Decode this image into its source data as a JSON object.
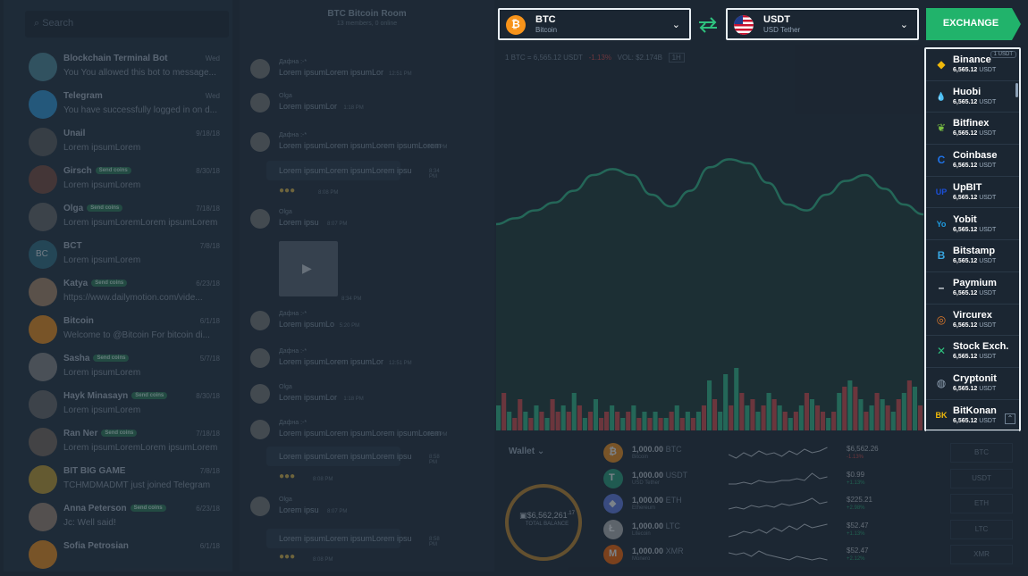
{
  "search": {
    "placeholder": "Search"
  },
  "chats": [
    {
      "name": "Blockchain Terminal Bot",
      "time": "Wed",
      "msg": "You You allowed this bot to message...",
      "badge": "",
      "color": "#4f8f9e"
    },
    {
      "name": "Telegram",
      "time": "Wed",
      "msg": "You have successfully logged in on d...",
      "badge": "",
      "color": "#2f9de0"
    },
    {
      "name": "Unail",
      "time": "9/18/18",
      "msg": "Lorem ipsumLorem",
      "badge": "",
      "color": "#5e5e5e"
    },
    {
      "name": "Girsch",
      "time": "8/30/18",
      "msg": "Lorem ipsumLorem",
      "badge": "Send coins",
      "color": "#7b4b3e"
    },
    {
      "name": "Olga",
      "time": "7/18/18",
      "msg": "Lorem ipsumLoremLorem ipsumLorem",
      "badge": "Send coins",
      "color": "#6a6a6a"
    },
    {
      "name": "BCT",
      "time": "7/8/18",
      "msg": "Lorem ipsumLorem",
      "badge": "",
      "color": "#2f7287",
      "initials": "BC"
    },
    {
      "name": "Katya",
      "time": "6/23/18",
      "msg": "https://www.dailymotion.com/vide...",
      "badge": "Send coins",
      "color": "#b08b6a"
    },
    {
      "name": "Bitcoin",
      "time": "6/1/18",
      "msg": "Welcome to @Bitcoin For bitcoin di...",
      "badge": "",
      "color": "#f7931a"
    },
    {
      "name": "Sasha",
      "time": "5/7/18",
      "msg": "Lorem ipsumLorem",
      "badge": "Send coins",
      "color": "#8a8a8a"
    },
    {
      "name": "Hayk Minasayn",
      "time": "8/30/18",
      "msg": "Lorem ipsumLorem",
      "badge": "Send coins",
      "color": "#6b6b6b"
    },
    {
      "name": "Ran Ner",
      "time": "7/18/18",
      "msg": "Lorem ipsumLoremLorem ipsumLorem",
      "badge": "Send coins",
      "color": "#7a6a5e"
    },
    {
      "name": "BIT BIG GAME",
      "time": "7/8/18",
      "msg": "TCHMDMADMT just joined Telegram",
      "badge": "",
      "color": "#c9a230"
    },
    {
      "name": "Anna Peterson",
      "time": "6/23/18",
      "msg": "Jc: Well said!",
      "badge": "Send coins",
      "color": "#a38a76"
    },
    {
      "name": "Sofia Petrosian",
      "time": "6/1/18",
      "msg": "",
      "badge": "",
      "color": "#f7931a"
    }
  ],
  "room": {
    "title": "BTC Bitcoin Room",
    "subtitle": "13 members, 0 online"
  },
  "messages": [
    {
      "who": "Дафна :-*",
      "text": "Lorem ipsumLorem ipsumLor",
      "time": "12:51 PM",
      "y": 66
    },
    {
      "who": "Olga",
      "text": "Lorem ipsumLor",
      "time": "1:18 PM",
      "y": 104
    },
    {
      "who": "Дафна :-*",
      "text": "Lorem ipsumLorem ipsumLorem ipsumLorem",
      "time": "8:58 PM",
      "y": 148
    },
    {
      "who": "Olga",
      "text": "Lorem ipsu",
      "time": "8:07 PM",
      "y": 234
    },
    {
      "who": "Дафна :-*",
      "text": "Lorem ipsumLo",
      "time": "5:20 PM",
      "y": 348
    },
    {
      "who": "Дафна :-*",
      "text": "Lorem ipsumLorem ipsumLor",
      "time": "12:51 PM",
      "y": 390
    },
    {
      "who": "Olga",
      "text": "Lorem ipsumLor",
      "time": "1:18 PM",
      "y": 430
    },
    {
      "who": "Дафна :-*",
      "text": "Lorem ipsumLorem ipsumLorem ipsumLorem",
      "time": "8:58 PM",
      "y": 470
    },
    {
      "who": "Olga",
      "text": "Lorem ipsu",
      "time": "8:07 PM",
      "y": 556
    }
  ],
  "room_extra": {
    "bubble1": "Lorem ipsumLorem ipsumLorem ipsu",
    "bubble1_time": "8:34 PM",
    "emoji_time": "8:08 PM",
    "video_time": "8:34 PM",
    "bubble2": "Lorem ipsumLorem ipsumLorem ipsu",
    "bubble2_time": "8:58 PM",
    "emoji2_time": "8:08 PM",
    "bubble3": "Lorem ipsumLorem ipsumLorem ipsu",
    "bubble3_time": "8:58 PM",
    "emoji3_time": "8:08 PM"
  },
  "ticker": {
    "pair": "1 BTC = 6,565.12 USDT",
    "change": "-1.13%",
    "vol": "VOL: $2.174B",
    "interval": "1H"
  },
  "from_currency": {
    "code": "BTC",
    "name": "Bitcoin",
    "icon": "bitcoin-icon",
    "color": "#f7931a"
  },
  "to_currency": {
    "code": "USDT",
    "name": "USD Tether",
    "icon": "us-flag-icon"
  },
  "exchange_button": "EXCHANGE",
  "dropdown_badge": "1 USDT",
  "exchanges": [
    {
      "name": "Binance",
      "price": "6,565.12",
      "unit": "USDT",
      "icon": "binance-icon",
      "color": "#f0b90b",
      "glyph": "◆"
    },
    {
      "name": "Huobi",
      "price": "6,565.12",
      "unit": "USDT",
      "icon": "huobi-icon",
      "color": "#2a8fe0",
      "glyph": "💧"
    },
    {
      "name": "Bitfinex",
      "price": "6,565.12",
      "unit": "USDT",
      "icon": "bitfinex-icon",
      "color": "#7bc043",
      "glyph": "❦"
    },
    {
      "name": "Coinbase",
      "price": "6,565.12",
      "unit": "USDT",
      "icon": "coinbase-icon",
      "color": "#1f72e6",
      "glyph": "C"
    },
    {
      "name": "UpBIT",
      "price": "6,565.12",
      "unit": "USDT",
      "icon": "upbit-icon",
      "color": "#1b4fd8",
      "glyph": "UP"
    },
    {
      "name": "Yobit",
      "price": "6,565.12",
      "unit": "USDT",
      "icon": "yobit-icon",
      "color": "#1e9be0",
      "glyph": "Yo"
    },
    {
      "name": "Bitstamp",
      "price": "6,565.12",
      "unit": "USDT",
      "icon": "bitstamp-icon",
      "color": "#38a5e0",
      "glyph": "B"
    },
    {
      "name": "Paymium",
      "price": "6,565.12",
      "unit": "USDT",
      "icon": "paymium-icon",
      "color": "#e8eef3",
      "glyph": "–"
    },
    {
      "name": "Vircurex",
      "price": "6,565.12",
      "unit": "USDT",
      "icon": "vircurex-icon",
      "color": "#e07a2a",
      "glyph": "◎"
    },
    {
      "name": "Stock Exch.",
      "price": "6,565.12",
      "unit": "USDT",
      "icon": "stock-exchange-icon",
      "color": "#2ec27e",
      "glyph": "✕"
    },
    {
      "name": "Cryptonit",
      "price": "6,565.12",
      "unit": "USDT",
      "icon": "cryptonit-icon",
      "color": "#8fa0b2",
      "glyph": "◍"
    },
    {
      "name": "BitKonan",
      "price": "6,565.12",
      "unit": "USDT",
      "icon": "bitkonan-icon",
      "color": "#f0b90b",
      "glyph": "BK"
    }
  ],
  "wallet": {
    "label": "Wallet",
    "balance": "$6,562,261",
    "balance_cents": ".17",
    "balance_label": "TOTAL BALANCE",
    "rows": [
      {
        "amount": "1,000.00",
        "unit": "BTC",
        "sub": "Bitcoin",
        "value": "$6,562.26",
        "change": "-1.13%",
        "neg": true,
        "tick": "BTC",
        "color": "#f7931a",
        "glyph": "₿"
      },
      {
        "amount": "1,000.00",
        "unit": "USDT",
        "sub": "USD Tether",
        "value": "$0.99",
        "change": "+1.13%",
        "neg": false,
        "tick": "USDT",
        "color": "#26a17b",
        "glyph": "T"
      },
      {
        "amount": "1,000.00",
        "unit": "ETH",
        "sub": "Ethereum",
        "value": "$225.21",
        "change": "+2.98%",
        "neg": false,
        "tick": "ETH",
        "color": "#627eea",
        "glyph": "◆"
      },
      {
        "amount": "1,000.00",
        "unit": "LTC",
        "sub": "Litecoin",
        "value": "$52.47",
        "change": "+1.13%",
        "neg": false,
        "tick": "LTC",
        "color": "#b8b8b8",
        "glyph": "Ł"
      },
      {
        "amount": "1,000.00",
        "unit": "XMR",
        "sub": "Monero",
        "value": "$52.47",
        "change": "+2.12%",
        "neg": false,
        "tick": "XMR",
        "color": "#ff6600",
        "glyph": "M"
      }
    ]
  },
  "chart_data": {
    "type": "line",
    "line": [
      0.55,
      0.52,
      0.48,
      0.44,
      0.38,
      0.3,
      0.27,
      0.3,
      0.4,
      0.46,
      0.38,
      0.26,
      0.22,
      0.24,
      0.34,
      0.45,
      0.48,
      0.4,
      0.33,
      0.3,
      0.37,
      0.45,
      0.5
    ],
    "volumes": [
      0.4,
      0.6,
      0.3,
      0.2,
      0.5,
      0.3,
      0.2,
      0.4,
      0.3,
      0.2,
      0.5,
      0.3,
      0.4,
      0.3,
      0.6,
      0.4,
      0.2,
      0.3,
      0.5,
      0.2,
      0.3,
      0.4,
      0.3,
      0.2,
      0.3,
      0.4,
      0.2,
      0.3,
      0.2,
      0.3,
      0.2,
      0.2,
      0.3,
      0.4,
      0.2,
      0.3,
      0.2,
      0.3,
      0.4,
      0.8,
      0.5,
      0.3,
      0.9,
      0.4,
      1.0,
      0.6,
      0.4,
      0.5,
      0.3,
      0.4,
      0.6,
      0.5,
      0.4,
      0.3,
      0.2,
      0.3,
      0.4,
      0.6,
      0.5,
      0.4,
      0.3,
      0.2,
      0.3,
      0.6,
      0.7,
      0.8,
      0.7,
      0.5,
      0.3,
      0.4,
      0.6,
      0.5,
      0.4,
      0.3,
      0.5,
      0.6,
      0.8,
      0.7,
      0.4
    ],
    "volume_colors": [
      "g",
      "r",
      "g",
      "r",
      "r",
      "g",
      "r",
      "g",
      "r",
      "g",
      "r",
      "r",
      "g",
      "r",
      "g",
      "r",
      "g",
      "r",
      "g",
      "r",
      "r",
      "g",
      "r",
      "g",
      "r",
      "g",
      "r",
      "g",
      "r",
      "g",
      "r",
      "g",
      "r",
      "g",
      "r",
      "g",
      "r",
      "g",
      "r",
      "g",
      "r",
      "g",
      "g",
      "r",
      "g",
      "r",
      "g",
      "r",
      "g",
      "r",
      "g",
      "r",
      "g",
      "r",
      "g",
      "r",
      "g",
      "r",
      "g",
      "r",
      "r",
      "g",
      "r",
      "g",
      "r",
      "g",
      "r",
      "g",
      "r",
      "g",
      "r",
      "g",
      "r",
      "g",
      "r",
      "g",
      "r",
      "g",
      "r"
    ]
  }
}
